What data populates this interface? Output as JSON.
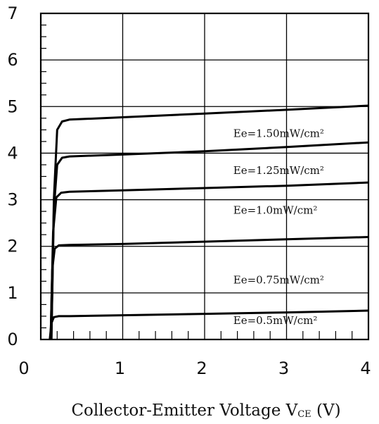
{
  "chart_data": {
    "type": "line",
    "title": "",
    "xlabel": "Collector-Emitter Voltage V",
    "xlabel_subscript": "CE",
    "xlabel_unit": " (V)",
    "ylabel": "",
    "xlim": [
      0,
      4
    ],
    "ylim": [
      0,
      7
    ],
    "x_ticks": [
      "0",
      "1",
      "2",
      "3",
      "4"
    ],
    "y_ticks": [
      "0",
      "1",
      "2",
      "3",
      "4",
      "5",
      "6",
      "7"
    ],
    "grid": true,
    "series": [
      {
        "name": "Ee=1.50mW/cm²",
        "label_at": [
          2.35,
          4.35
        ],
        "points": [
          [
            0.13,
            0
          ],
          [
            0.16,
            3.0
          ],
          [
            0.2,
            4.5
          ],
          [
            0.26,
            4.68
          ],
          [
            0.35,
            4.72
          ],
          [
            1.0,
            4.77
          ],
          [
            2.0,
            4.85
          ],
          [
            3.0,
            4.93
          ],
          [
            4.0,
            5.02
          ]
        ]
      },
      {
        "name": "Ee=1.25mW/cm²",
        "label_at": [
          2.35,
          3.55
        ],
        "points": [
          [
            0.13,
            0
          ],
          [
            0.16,
            2.8
          ],
          [
            0.2,
            3.75
          ],
          [
            0.26,
            3.9
          ],
          [
            0.35,
            3.93
          ],
          [
            1.0,
            3.97
          ],
          [
            2.0,
            4.04
          ],
          [
            3.0,
            4.13
          ],
          [
            4.0,
            4.23
          ]
        ]
      },
      {
        "name": "Ee=1.0mW/cm²",
        "label_at": [
          2.35,
          2.7
        ],
        "points": [
          [
            0.12,
            0
          ],
          [
            0.15,
            2.3
          ],
          [
            0.19,
            3.05
          ],
          [
            0.25,
            3.15
          ],
          [
            0.35,
            3.17
          ],
          [
            1.0,
            3.2
          ],
          [
            2.0,
            3.25
          ],
          [
            3.0,
            3.3
          ],
          [
            4.0,
            3.37
          ]
        ]
      },
      {
        "name": "Ee=0.75mW/cm²",
        "label_at": [
          2.35,
          1.2
        ],
        "points": [
          [
            0.12,
            0
          ],
          [
            0.14,
            1.5
          ],
          [
            0.17,
            1.95
          ],
          [
            0.22,
            2.02
          ],
          [
            0.35,
            2.03
          ],
          [
            1.0,
            2.05
          ],
          [
            2.0,
            2.1
          ],
          [
            3.0,
            2.15
          ],
          [
            4.0,
            2.2
          ]
        ]
      },
      {
        "name": "Ee=0.5mW/cm²",
        "label_at": [
          2.35,
          0.33
        ],
        "points": [
          [
            0.11,
            0
          ],
          [
            0.13,
            0.35
          ],
          [
            0.16,
            0.48
          ],
          [
            0.22,
            0.5
          ],
          [
            0.35,
            0.5
          ],
          [
            1.0,
            0.52
          ],
          [
            2.0,
            0.55
          ],
          [
            3.0,
            0.58
          ],
          [
            4.0,
            0.62
          ]
        ]
      }
    ]
  }
}
